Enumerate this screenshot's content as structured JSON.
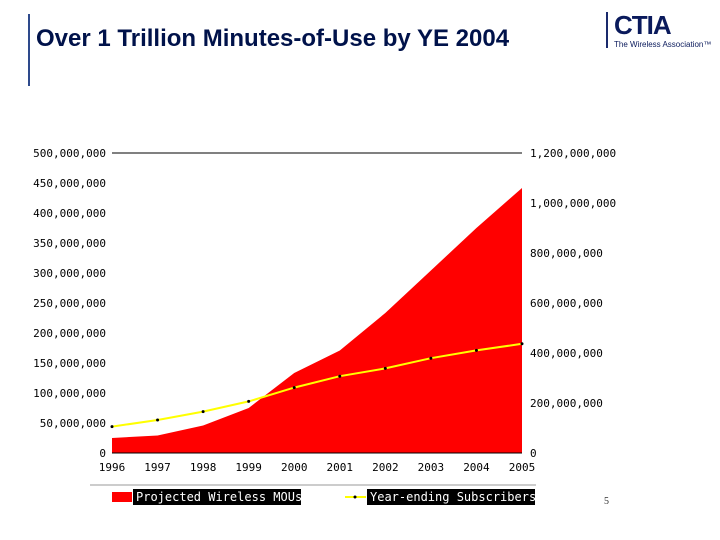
{
  "slide": {
    "title": "Over 1 Trillion Minutes-of-Use by YE 2004",
    "page_number": "5"
  },
  "logo": {
    "main": "CTIA",
    "sub": "The Wireless Association™"
  },
  "colors": {
    "area": "#ff0000",
    "line": "#ffff00",
    "title": "#00124a"
  },
  "chart_data": {
    "type": "area",
    "categories": [
      "1996",
      "1997",
      "1998",
      "1999",
      "2000",
      "2001",
      "2002",
      "2003",
      "2004",
      "2005"
    ],
    "series": [
      {
        "name": "Projected Wireless MOUs",
        "type": "area",
        "axis": "right",
        "values": [
          60000000,
          70000000,
          110000000,
          180000000,
          320000000,
          410000000,
          560000000,
          730000000,
          900000000,
          1060000000
        ]
      },
      {
        "name": "Year-ending Subscribers",
        "type": "line",
        "axis": "left",
        "values": [
          44000000,
          55000000,
          69000000,
          86000000,
          109000000,
          128000000,
          141000000,
          158000000,
          171000000,
          182000000
        ]
      }
    ],
    "y_left": {
      "ylim": [
        0,
        500000000
      ],
      "ticks": [
        "0",
        "50,000,000",
        "100,000,000",
        "150,000,000",
        "200,000,000",
        "250,000,000",
        "300,000,000",
        "350,000,000",
        "400,000,000",
        "450,000,000",
        "500,000,000"
      ]
    },
    "y_right": {
      "ylim": [
        0,
        1200000000
      ],
      "ticks": [
        "0",
        "200,000,000",
        "400,000,000",
        "600,000,000",
        "800,000,000",
        "1,000,000,000",
        "1,200,000,000"
      ]
    },
    "legend": [
      "Projected Wireless MOUs",
      "Year-ending Subscribers"
    ],
    "legend_position": "bottom"
  }
}
